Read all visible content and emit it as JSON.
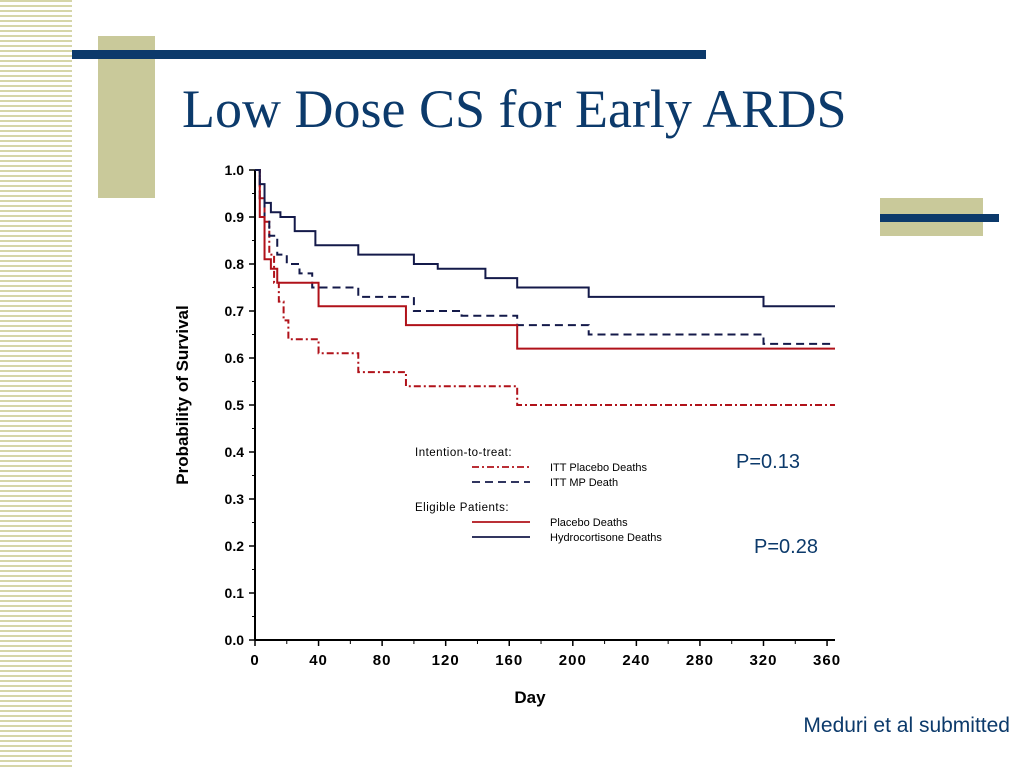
{
  "slide": {
    "title": "Low Dose CS for Early ARDS",
    "citation": "Meduri et al submitted",
    "p_values": [
      "P=0.13",
      "P=0.28"
    ],
    "colors": {
      "accent": "#0c3a6b",
      "block": "#c9c99a",
      "placebo": "#b0121a",
      "treatment": "#141a4a"
    }
  },
  "chart_data": {
    "type": "line",
    "step": true,
    "xlabel": "Day",
    "ylabel": "Probability of Survival",
    "xlim": [
      0,
      365
    ],
    "ylim": [
      0,
      1.0
    ],
    "xticks": [
      0,
      40,
      80,
      120,
      160,
      200,
      240,
      280,
      320,
      360
    ],
    "yticks": [
      "0.0",
      "0.1",
      "0.2",
      "0.3",
      "0.4",
      "0.5",
      "0.6",
      "0.7",
      "0.8",
      "0.9",
      "1.0"
    ],
    "grid": false,
    "legend": {
      "position": "bottom-center",
      "groups": [
        {
          "heading": "Intention-to-treat:",
          "entries": [
            "ITT Placebo Deaths",
            "ITT MP Death"
          ]
        },
        {
          "heading": "Eligible  Patients:",
          "entries": [
            "Placebo Deaths",
            "Hydrocortisone Deaths"
          ]
        }
      ]
    },
    "series": [
      {
        "name": "ITT Placebo Deaths",
        "color": "#b0121a",
        "dash": "dashdot",
        "x": [
          0,
          3,
          6,
          9,
          12,
          15,
          18,
          21,
          40,
          65,
          95,
          165,
          365
        ],
        "y": [
          1.0,
          0.94,
          0.89,
          0.82,
          0.76,
          0.72,
          0.68,
          0.64,
          0.61,
          0.57,
          0.54,
          0.5,
          0.5
        ]
      },
      {
        "name": "ITT MP Death",
        "color": "#141a4a",
        "dash": "dashed",
        "x": [
          0,
          3,
          6,
          9,
          14,
          20,
          28,
          36,
          45,
          65,
          100,
          130,
          165,
          210,
          320,
          365
        ],
        "y": [
          1.0,
          0.94,
          0.89,
          0.86,
          0.82,
          0.8,
          0.78,
          0.75,
          0.75,
          0.73,
          0.7,
          0.69,
          0.67,
          0.65,
          0.63,
          0.63
        ]
      },
      {
        "name": "Placebo Deaths",
        "color": "#b0121a",
        "dash": "solid",
        "x": [
          0,
          3,
          6,
          10,
          14,
          40,
          95,
          165,
          365
        ],
        "y": [
          1.0,
          0.9,
          0.81,
          0.79,
          0.76,
          0.71,
          0.67,
          0.62,
          0.62
        ]
      },
      {
        "name": "Hydrocortisone Deaths",
        "color": "#141a4a",
        "dash": "solid",
        "x": [
          0,
          3,
          6,
          10,
          16,
          25,
          38,
          65,
          100,
          115,
          145,
          165,
          210,
          320,
          365
        ],
        "y": [
          1.0,
          0.97,
          0.93,
          0.91,
          0.9,
          0.87,
          0.84,
          0.82,
          0.8,
          0.79,
          0.77,
          0.75,
          0.73,
          0.71,
          0.71
        ]
      }
    ]
  }
}
